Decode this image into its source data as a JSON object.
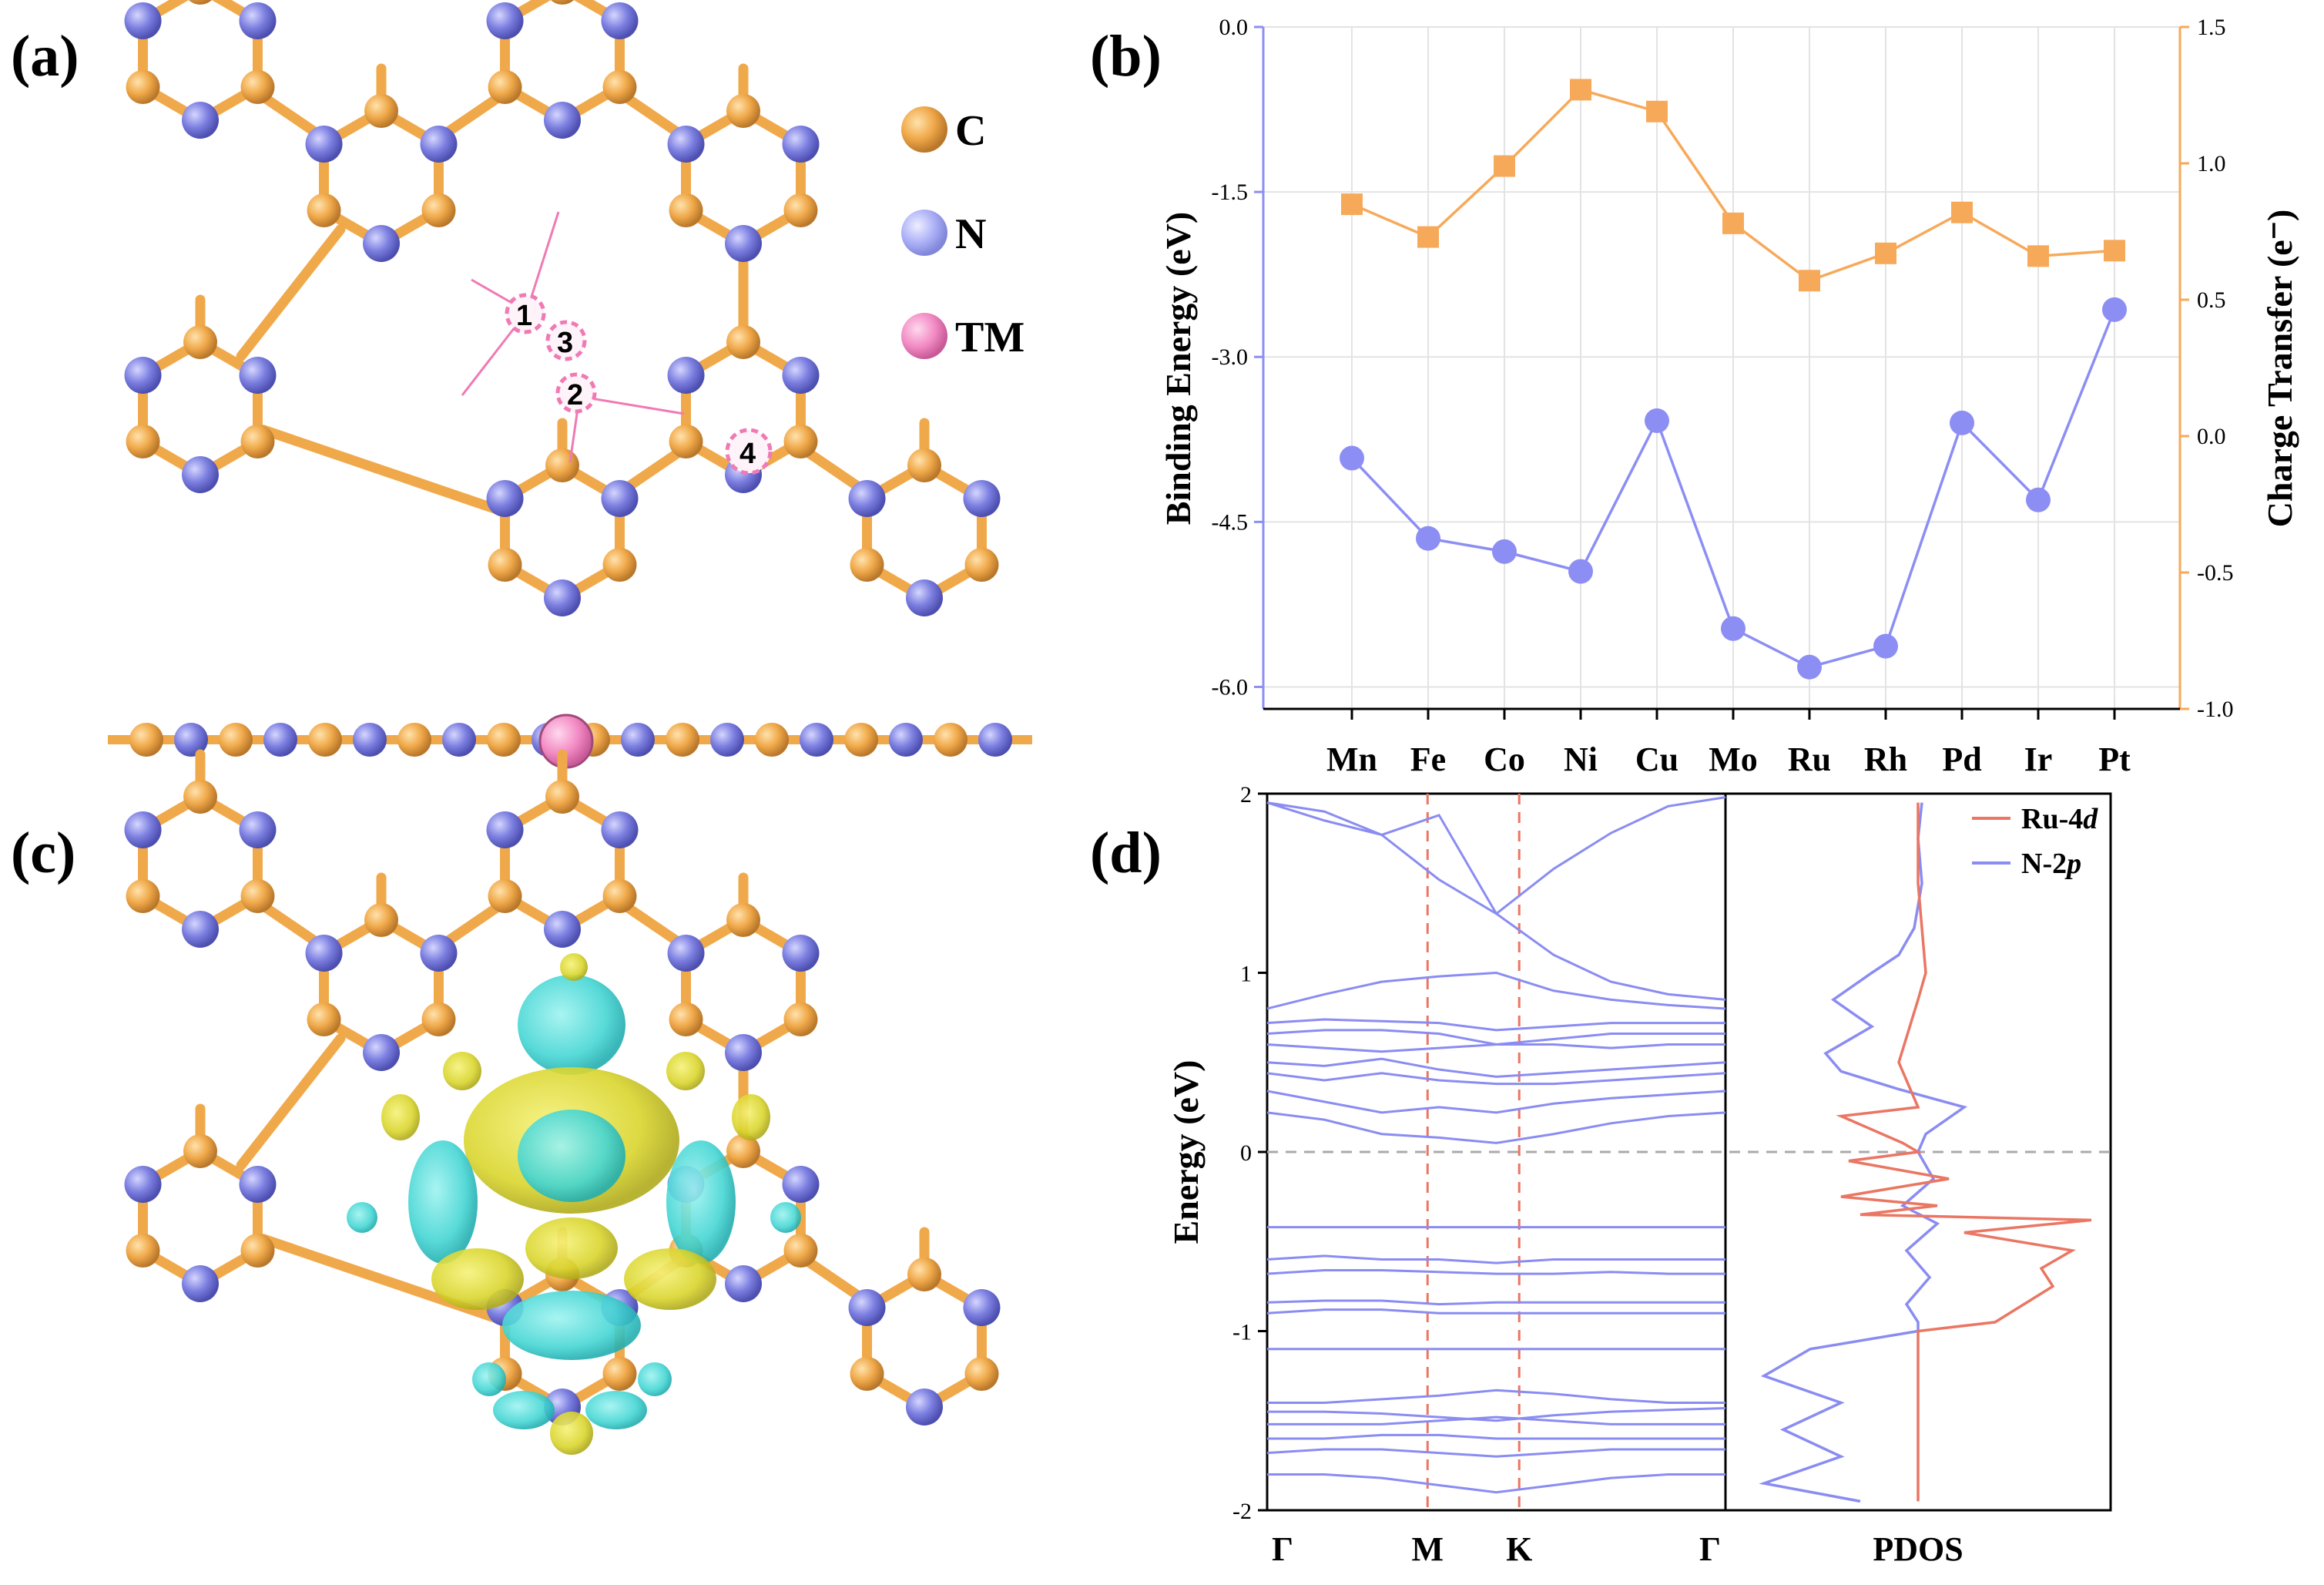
{
  "panels": {
    "a": "(a)",
    "b": "(b)",
    "c": "(c)",
    "d": "(d)"
  },
  "legend_a": {
    "items": [
      {
        "label": "C",
        "color": "#f0a94a"
      },
      {
        "label": "N",
        "color": "#a9aef6"
      },
      {
        "label": "TM",
        "color": "#f28ac3"
      }
    ],
    "sites": [
      "1",
      "2",
      "3",
      "4"
    ]
  },
  "colors": {
    "carbon": "#f0a94a",
    "nitrogen": "#7c7fe0",
    "tm": "#f28ac3",
    "binding": "#8c8ef4",
    "charge": "#f7a95a",
    "ru4d": "#ea7663",
    "n2p": "#8a8cf2",
    "cyan": "#45d6d4",
    "yellow": "#d9d52d"
  },
  "chart_data": [
    {
      "panel": "(b)",
      "type": "line",
      "categories": [
        "Mn",
        "Fe",
        "Co",
        "Ni",
        "Cu",
        "Mo",
        "Ru",
        "Rh",
        "Pd",
        "Ir",
        "Pt"
      ],
      "series": [
        {
          "name": "Binding Energy",
          "axis": "left",
          "marker": "circle",
          "values": [
            -3.92,
            -4.65,
            -4.77,
            -4.95,
            -3.58,
            -5.47,
            -5.82,
            -5.63,
            -3.6,
            -4.3,
            -2.57
          ]
        },
        {
          "name": "Charge Transfer",
          "axis": "right",
          "marker": "square",
          "values": [
            0.85,
            0.73,
            0.99,
            1.27,
            1.19,
            0.78,
            0.57,
            0.67,
            0.82,
            0.66,
            0.68
          ]
        }
      ],
      "ylabel": "Binding Energy (eV)",
      "ylabel2": "Charge Transfer (e⁻)",
      "ylim": [
        -6.2,
        0.0
      ],
      "ylim2": [
        -1.0,
        1.5
      ],
      "yticks": [
        "-6.0",
        "-4.5",
        "-3.0",
        "-1.5",
        "0.0"
      ],
      "yticks2": [
        "-1.0",
        "-0.5",
        "0.0",
        "0.5",
        "1.0",
        "1.5"
      ],
      "grid": true
    },
    {
      "panel": "(d)",
      "type": "line",
      "title": "",
      "band_structure": {
        "kpoints": [
          "Γ",
          "M",
          "K",
          "Γ"
        ],
        "kpos": [
          0,
          0.35,
          0.55,
          1.0
        ],
        "ylim": [
          -2,
          2
        ],
        "yticks": [
          "-2",
          "-1",
          "0",
          "1",
          "2"
        ],
        "ylabel": "Energy (eV)",
        "fermi_level": 0,
        "bands": [
          [
            1.95,
            1.85,
            1.77,
            1.52,
            1.33,
            1.58,
            1.78,
            1.93,
            1.98
          ],
          [
            1.95,
            1.9,
            1.77,
            1.88,
            1.33,
            1.1,
            0.95,
            0.88,
            0.85
          ],
          [
            0.8,
            0.88,
            0.95,
            0.98,
            1.0,
            0.9,
            0.85,
            0.82,
            0.8
          ],
          [
            0.72,
            0.74,
            0.73,
            0.72,
            0.68,
            0.7,
            0.72,
            0.72,
            0.72
          ],
          [
            0.66,
            0.68,
            0.68,
            0.66,
            0.6,
            0.63,
            0.66,
            0.66,
            0.66
          ],
          [
            0.6,
            0.58,
            0.56,
            0.58,
            0.6,
            0.6,
            0.58,
            0.6,
            0.6
          ],
          [
            0.5,
            0.48,
            0.52,
            0.46,
            0.42,
            0.44,
            0.46,
            0.48,
            0.5
          ],
          [
            0.44,
            0.4,
            0.44,
            0.4,
            0.38,
            0.38,
            0.4,
            0.42,
            0.44
          ],
          [
            0.34,
            0.28,
            0.22,
            0.25,
            0.22,
            0.27,
            0.3,
            0.32,
            0.34
          ],
          [
            0.22,
            0.18,
            0.1,
            0.08,
            0.05,
            0.1,
            0.16,
            0.2,
            0.22
          ],
          [
            -0.42,
            -0.42,
            -0.42,
            -0.42,
            -0.42,
            -0.42,
            -0.42,
            -0.42,
            -0.42
          ],
          [
            -0.6,
            -0.58,
            -0.6,
            -0.6,
            -0.62,
            -0.6,
            -0.6,
            -0.6,
            -0.6
          ],
          [
            -0.68,
            -0.66,
            -0.66,
            -0.67,
            -0.68,
            -0.68,
            -0.67,
            -0.68,
            -0.68
          ],
          [
            -0.84,
            -0.83,
            -0.83,
            -0.85,
            -0.84,
            -0.84,
            -0.84,
            -0.84,
            -0.84
          ],
          [
            -0.9,
            -0.88,
            -0.88,
            -0.9,
            -0.9,
            -0.9,
            -0.9,
            -0.9,
            -0.9
          ],
          [
            -1.1,
            -1.1,
            -1.1,
            -1.1,
            -1.1,
            -1.1,
            -1.1,
            -1.1,
            -1.1
          ],
          [
            -1.4,
            -1.4,
            -1.38,
            -1.36,
            -1.33,
            -1.35,
            -1.38,
            -1.4,
            -1.4
          ],
          [
            -1.45,
            -1.45,
            -1.46,
            -1.48,
            -1.5,
            -1.47,
            -1.45,
            -1.44,
            -1.43
          ],
          [
            -1.52,
            -1.52,
            -1.52,
            -1.5,
            -1.48,
            -1.5,
            -1.52,
            -1.52,
            -1.52
          ],
          [
            -1.6,
            -1.6,
            -1.58,
            -1.58,
            -1.6,
            -1.6,
            -1.6,
            -1.6,
            -1.6
          ],
          [
            -1.68,
            -1.66,
            -1.66,
            -1.68,
            -1.7,
            -1.68,
            -1.66,
            -1.66,
            -1.66
          ],
          [
            -1.8,
            -1.8,
            -1.82,
            -1.86,
            -1.9,
            -1.86,
            -1.82,
            -1.8,
            -1.8
          ]
        ]
      },
      "pdos": {
        "xlabel": "PDOS",
        "legend": [
          "Ru-4",
          "d",
          "N-2",
          "p"
        ],
        "ru4d": [
          [
            -1.95,
            0.5
          ],
          [
            -1.5,
            0.5
          ],
          [
            -1.0,
            0.5
          ],
          [
            -0.95,
            0.7
          ],
          [
            -0.75,
            0.85
          ],
          [
            -0.65,
            0.82
          ],
          [
            -0.55,
            0.9
          ],
          [
            -0.45,
            0.62
          ],
          [
            -0.38,
            0.95
          ],
          [
            -0.35,
            0.35
          ],
          [
            -0.3,
            0.55
          ],
          [
            -0.25,
            0.3
          ],
          [
            -0.15,
            0.58
          ],
          [
            -0.05,
            0.32
          ],
          [
            0.0,
            0.5
          ],
          [
            0.05,
            0.46
          ],
          [
            0.2,
            0.3
          ],
          [
            0.25,
            0.5
          ],
          [
            0.5,
            0.45
          ],
          [
            0.85,
            0.5
          ],
          [
            1.0,
            0.52
          ],
          [
            1.5,
            0.5
          ],
          [
            1.95,
            0.5
          ]
        ],
        "n2p": [
          [
            -1.95,
            0.35
          ],
          [
            -1.85,
            0.1
          ],
          [
            -1.7,
            0.3
          ],
          [
            -1.55,
            0.15
          ],
          [
            -1.4,
            0.3
          ],
          [
            -1.25,
            0.1
          ],
          [
            -1.1,
            0.22
          ],
          [
            -1.0,
            0.5
          ],
          [
            -0.95,
            0.5
          ],
          [
            -0.85,
            0.47
          ],
          [
            -0.7,
            0.53
          ],
          [
            -0.55,
            0.47
          ],
          [
            -0.4,
            0.55
          ],
          [
            -0.3,
            0.46
          ],
          [
            -0.15,
            0.54
          ],
          [
            0.0,
            0.5
          ],
          [
            0.1,
            0.52
          ],
          [
            0.25,
            0.62
          ],
          [
            0.35,
            0.45
          ],
          [
            0.45,
            0.3
          ],
          [
            0.55,
            0.26
          ],
          [
            0.7,
            0.38
          ],
          [
            0.85,
            0.28
          ],
          [
            1.0,
            0.38
          ],
          [
            1.1,
            0.45
          ],
          [
            1.25,
            0.49
          ],
          [
            1.5,
            0.51
          ],
          [
            1.75,
            0.5
          ],
          [
            1.95,
            0.51
          ]
        ]
      }
    }
  ]
}
